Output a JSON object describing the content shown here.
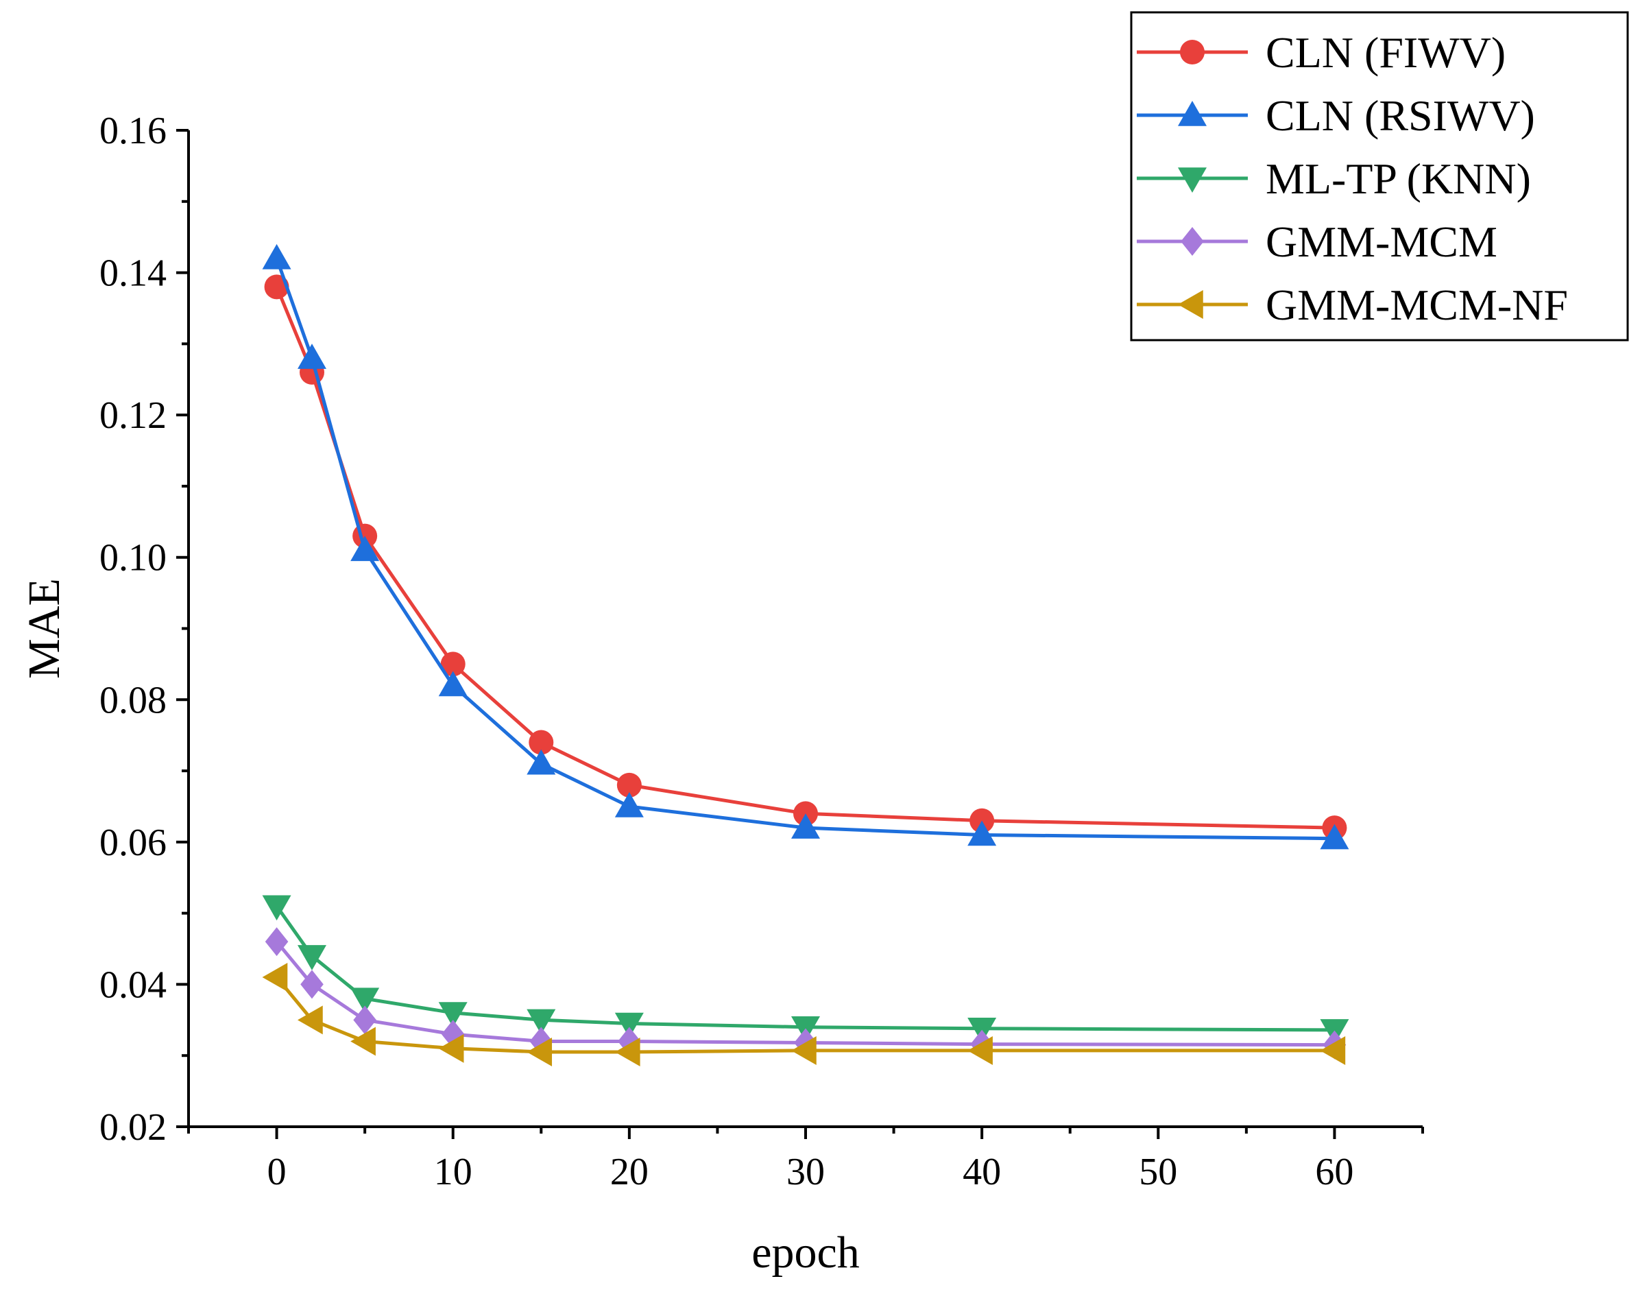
{
  "chart_data": {
    "type": "line",
    "title": "",
    "xlabel": "epoch",
    "ylabel": "MAE",
    "xlim": [
      -5,
      65
    ],
    "ylim": [
      0.02,
      0.16
    ],
    "xticks": [
      0,
      10,
      20,
      30,
      40,
      50,
      60
    ],
    "xtick_labels": [
      "0",
      "10",
      "20",
      "30",
      "40",
      "50",
      "60"
    ],
    "yticks": [
      0.02,
      0.04,
      0.06,
      0.08,
      0.1,
      0.12,
      0.14,
      0.16
    ],
    "ytick_labels": [
      "0.02",
      "0.04",
      "0.06",
      "0.08",
      "0.10",
      "0.12",
      "0.14",
      "0.16"
    ],
    "grid": false,
    "legend_position": "top-right",
    "x": [
      0,
      2,
      5,
      10,
      15,
      20,
      30,
      40,
      60
    ],
    "series": [
      {
        "name": "CLN (FIWV)",
        "color": "#e8403b",
        "marker": "circle",
        "values": [
          0.138,
          0.126,
          0.103,
          0.085,
          0.074,
          0.068,
          0.064,
          0.063,
          0.062
        ]
      },
      {
        "name": "CLN (RSIWV)",
        "color": "#1e6fdc",
        "marker": "triangle-up",
        "values": [
          0.142,
          0.128,
          0.101,
          0.082,
          0.071,
          0.065,
          0.062,
          0.061,
          0.0605
        ]
      },
      {
        "name": "ML-TP (KNN)",
        "color": "#2fa86a",
        "marker": "triangle-down",
        "values": [
          0.051,
          0.044,
          0.038,
          0.036,
          0.035,
          0.0345,
          0.034,
          0.0338,
          0.0336
        ]
      },
      {
        "name": "GMM-MCM",
        "color": "#a679db",
        "marker": "diamond",
        "values": [
          0.046,
          0.04,
          0.035,
          0.033,
          0.032,
          0.032,
          0.0318,
          0.0316,
          0.0315
        ]
      },
      {
        "name": "GMM-MCM-NF",
        "color": "#c9960c",
        "marker": "triangle-left",
        "values": [
          0.041,
          0.035,
          0.032,
          0.031,
          0.0305,
          0.0305,
          0.0307,
          0.0307,
          0.0307
        ]
      }
    ]
  }
}
